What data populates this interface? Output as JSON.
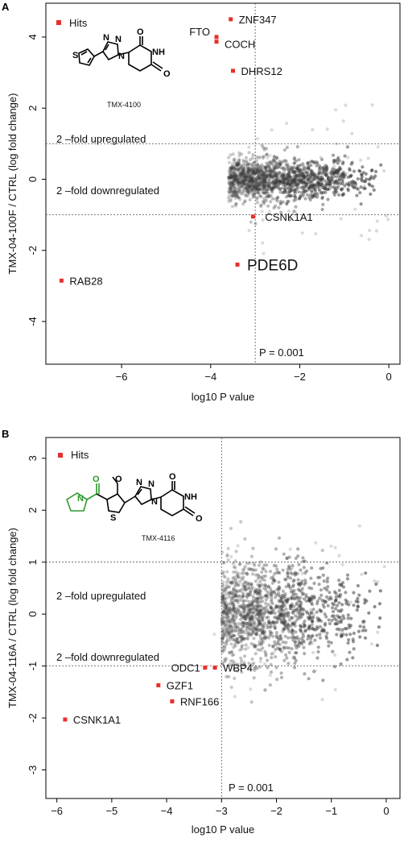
{
  "chart_data": [
    {
      "type": "scatter",
      "panel": "A",
      "xlabel": "log10 P value",
      "ylabel": "TMX-04-100F / CTRL (log fold change)",
      "xlim": [
        -7.7,
        0.25
      ],
      "ylim": [
        -5.2,
        4.95
      ],
      "xticks": [
        -6,
        -4,
        -2,
        0
      ],
      "yticks": [
        -4,
        -2,
        0,
        2,
        4
      ],
      "hlines": [
        1,
        -1
      ],
      "vline": -3,
      "legend": "Hits",
      "annotations": {
        "up": "2 –fold upregulated",
        "down": "2 –fold downregulated",
        "pvalue": "P =  0.001"
      },
      "compound_label": "TMX-4100",
      "hits": [
        {
          "label": "ZNF347",
          "x": -3.55,
          "y": 4.5
        },
        {
          "label": "FTO",
          "x": -3.87,
          "y": 4.0
        },
        {
          "label": "COCH",
          "x": -3.87,
          "y": 3.87
        },
        {
          "label": "DHRS12",
          "x": -3.5,
          "y": 3.05
        },
        {
          "label": "CSNK1A1",
          "x": -3.05,
          "y": -1.05
        },
        {
          "label": "PDE6D",
          "x": -3.4,
          "y": -2.4
        },
        {
          "label": "RAB28",
          "x": -7.35,
          "y": -2.85
        }
      ]
    },
    {
      "type": "scatter",
      "panel": "B",
      "xlabel": "log10 P value",
      "ylabel": "TMX-04-116A / CTRL (log fold change)",
      "xlim": [
        -6.2,
        0.25
      ],
      "ylim": [
        -3.55,
        3.4
      ],
      "xticks": [
        -6,
        -5,
        -4,
        -3,
        -2,
        -1,
        0
      ],
      "yticks": [
        -3,
        -2,
        -1,
        0,
        1,
        2,
        3
      ],
      "hlines": [
        1,
        -1
      ],
      "vline": -3,
      "legend": "Hits",
      "annotations": {
        "up": "2 –fold upregulated",
        "down": "2 –fold downregulated",
        "pvalue": "P =  0.001"
      },
      "compound_label": "TMX-4116",
      "hits": [
        {
          "label": "ODC1",
          "x": -3.3,
          "y": -1.03
        },
        {
          "label": "WBP4",
          "x": -3.12,
          "y": -1.03
        },
        {
          "label": "GZF1",
          "x": -4.15,
          "y": -1.37
        },
        {
          "label": "RNF166",
          "x": -3.9,
          "y": -1.68
        },
        {
          "label": "CSNK1A1",
          "x": -5.85,
          "y": -2.03
        }
      ]
    }
  ],
  "chem": {
    "N": "N",
    "O": "O",
    "S": "S",
    "NH": "NH"
  },
  "colors": {
    "hit": "#e8302b",
    "point": "#3a3a3a",
    "green": "#2e9a2e"
  }
}
